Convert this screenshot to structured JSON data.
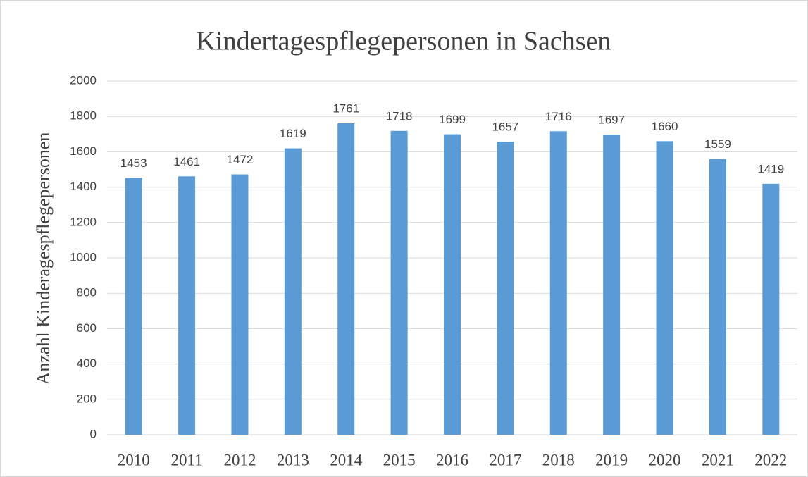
{
  "chart_data": {
    "type": "bar",
    "title": "Kindertagespflegepersonen in Sachsen",
    "y_label": "Anzahl  Kinderagespflegepersonen",
    "categories": [
      "2010",
      "2011",
      "2012",
      "2013",
      "2014",
      "2015",
      "2016",
      "2017",
      "2018",
      "2019",
      "2020",
      "2021",
      "2022"
    ],
    "values": [
      1453,
      1461,
      1472,
      1619,
      1761,
      1718,
      1699,
      1657,
      1716,
      1697,
      1660,
      1559,
      1419
    ],
    "color": "#5b9bd5",
    "ylim": [
      0,
      2000
    ],
    "yticks": [
      0,
      200,
      400,
      600,
      800,
      1000,
      1200,
      1400,
      1600,
      1800,
      2000
    ],
    "grid": true
  }
}
